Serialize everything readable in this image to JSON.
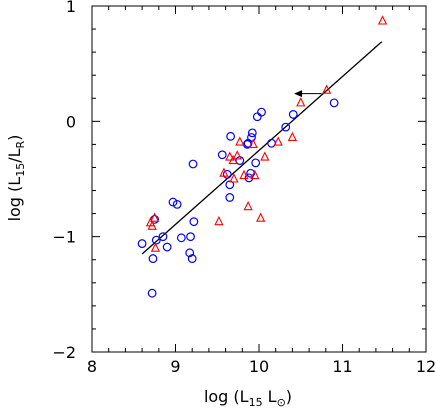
{
  "chart_data": {
    "type": "scatter",
    "xlim": [
      8,
      12
    ],
    "ylim": [
      -2,
      1
    ],
    "x_ticks": [
      8,
      9,
      10,
      11,
      12
    ],
    "y_ticks": [
      -2,
      -1,
      0,
      1
    ],
    "x_tick_labels": [
      "8",
      "9",
      "10",
      "11",
      "12"
    ],
    "y_tick_labels": [
      "−2",
      "−1",
      "0",
      "1"
    ],
    "xlabel": {
      "main": "log (L",
      "sub": "15",
      "mid": " L",
      "sym": "⊙",
      "end": ")"
    },
    "ylabel": {
      "main": "log (L",
      "sub1": "15",
      "mid": "/L",
      "sub2": "R",
      "end": ")"
    },
    "grid": false,
    "series": [
      {
        "marker": "circle",
        "color": "#0000ff",
        "points": [
          [
            8.6,
            -1.06
          ],
          [
            8.72,
            -1.49
          ],
          [
            8.73,
            -1.19
          ],
          [
            8.75,
            -0.85
          ],
          [
            8.77,
            -1.03
          ],
          [
            8.85,
            -1.0
          ],
          [
            8.9,
            -1.09
          ],
          [
            8.97,
            -0.7
          ],
          [
            9.02,
            -0.72
          ],
          [
            9.07,
            -1.01
          ],
          [
            9.17,
            -1.14
          ],
          [
            9.18,
            -1.0
          ],
          [
            9.2,
            -1.19
          ],
          [
            9.21,
            -0.37
          ],
          [
            9.22,
            -0.87
          ],
          [
            9.56,
            -0.29
          ],
          [
            9.62,
            -0.46
          ],
          [
            9.65,
            -0.55
          ],
          [
            9.65,
            -0.66
          ],
          [
            9.66,
            -0.13
          ],
          [
            9.77,
            -0.34
          ],
          [
            9.86,
            -0.2
          ],
          [
            9.87,
            -0.19
          ],
          [
            9.88,
            -0.49
          ],
          [
            9.9,
            -0.45
          ],
          [
            9.91,
            -0.14
          ],
          [
            9.92,
            -0.1
          ],
          [
            9.96,
            -0.36
          ],
          [
            9.98,
            0.04
          ],
          [
            10.03,
            0.08
          ],
          [
            10.15,
            -0.19
          ],
          [
            10.32,
            -0.05
          ],
          [
            10.41,
            0.06
          ],
          [
            10.9,
            0.16
          ]
        ]
      },
      {
        "marker": "triangle",
        "color": "#ff0000",
        "points": [
          [
            8.7,
            -0.88
          ],
          [
            8.72,
            -0.91
          ],
          [
            8.75,
            -0.84
          ],
          [
            8.76,
            -1.1
          ],
          [
            9.52,
            -0.87
          ],
          [
            9.58,
            -0.45
          ],
          [
            9.65,
            -0.31
          ],
          [
            9.69,
            -0.34
          ],
          [
            9.7,
            -0.5
          ],
          [
            9.74,
            -0.3
          ],
          [
            9.77,
            -0.18
          ],
          [
            9.82,
            -0.47
          ],
          [
            9.87,
            -0.74
          ],
          [
            9.93,
            -0.2
          ],
          [
            9.95,
            -0.47
          ],
          [
            10.02,
            -0.84
          ],
          [
            10.07,
            -0.31
          ],
          [
            10.23,
            -0.18
          ],
          [
            10.4,
            -0.14
          ],
          [
            10.5,
            0.16
          ],
          [
            10.81,
            0.27
          ],
          [
            11.48,
            0.87
          ]
        ]
      }
    ],
    "fit_line": {
      "x": [
        8.6,
        11.47
      ],
      "y": [
        -1.15,
        0.69
      ]
    },
    "arrow": {
      "from": [
        10.75,
        0.24
      ],
      "to": [
        10.42,
        0.24
      ]
    }
  }
}
